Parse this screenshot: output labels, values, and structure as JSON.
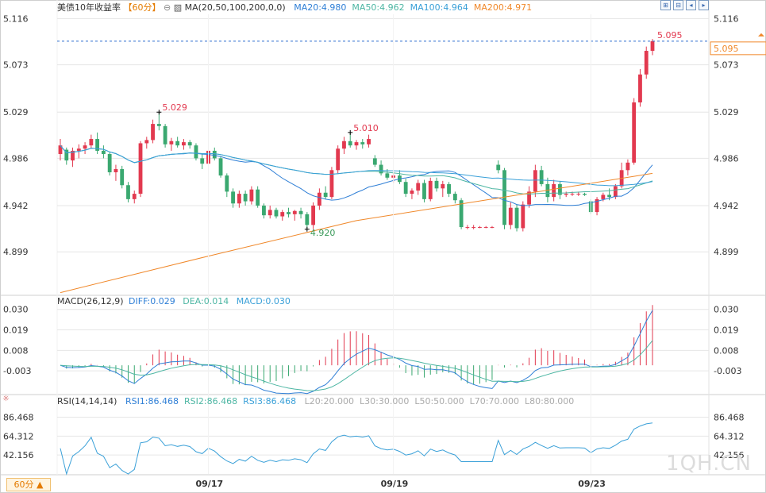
{
  "main": {
    "title": "美债10年收益率",
    "timeframe_badge": "【60分】",
    "ma_label": "MA(20,50,100,200,0,0)",
    "ma_values": [
      {
        "text": "MA20:4.980",
        "color": "#2f7fd6"
      },
      {
        "text": "MA50:4.962",
        "color": "#4db6a3"
      },
      {
        "text": "MA100:4.964",
        "color": "#3aa0d8"
      },
      {
        "text": "MA200:4.971",
        "color": "#f0882a"
      }
    ],
    "price_ticks": [
      "5.116",
      "5.073",
      "5.029",
      "4.986",
      "4.942",
      "4.899"
    ],
    "last_price": "5.095",
    "last_price_tag": "5.095",
    "annotations": [
      {
        "text": "5.029",
        "color": "#e2394f"
      },
      {
        "text": "5.010",
        "color": "#e2394f"
      },
      {
        "text": "4.920",
        "color": "#3a9a5a"
      }
    ]
  },
  "macd": {
    "label": "MACD(26,12,9)",
    "diff": "DIFF:0.029",
    "dea": "DEA:0.014",
    "macd": "MACD:0.030",
    "ticks": [
      "0.030",
      "0.019",
      "0.008",
      "-0.003"
    ]
  },
  "rsi": {
    "label": "RSI(14,14,14)",
    "values": [
      {
        "text": "RSI1:86.468",
        "color": "#2f7fd6"
      },
      {
        "text": "RSI2:86.468",
        "color": "#4db6a3"
      },
      {
        "text": "RSI3:86.468",
        "color": "#3aa0d8"
      }
    ],
    "levels": [
      "L20:20.000",
      "L30:30.000",
      "L50:50.000",
      "L70:70.000",
      "L80:80.000"
    ],
    "ticks": [
      "86.468",
      "64.312",
      "42.156"
    ]
  },
  "x_ticks": [
    "09/17",
    "09/19",
    "09/23"
  ],
  "timeframe_button": "60分 ▲",
  "watermark": "1QH.CN",
  "colors": {
    "up": "#e2394f",
    "down": "#3aa870",
    "ma20": "#2f7fd6",
    "ma50": "#4db6a3",
    "ma100": "#3aa0d8",
    "ma200": "#f0882a",
    "grid": "#e6e6e6"
  },
  "chart_data": {
    "type": "candlestick",
    "title": "美债10年收益率",
    "timeframe": "60分",
    "y_range": [
      4.86,
      5.12
    ],
    "x_labels": [
      "09/17",
      "09/19",
      "09/23"
    ],
    "candles": [
      [
        4.99,
        5.004,
        4.984,
        4.998
      ],
      [
        4.994,
        4.996,
        4.98,
        4.984
      ],
      [
        4.984,
        4.996,
        4.978,
        4.993
      ],
      [
        4.993,
        4.999,
        4.986,
        4.995
      ],
      [
        4.995,
        5.001,
        4.99,
        4.998
      ],
      [
        4.998,
        5.008,
        4.995,
        5.004
      ],
      [
        5.004,
        5.01,
        4.99,
        4.993
      ],
      [
        4.993,
        4.998,
        4.986,
        4.99
      ],
      [
        4.99,
        4.992,
        4.97,
        4.973
      ],
      [
        4.973,
        4.98,
        4.965,
        4.976
      ],
      [
        4.976,
        4.979,
        4.958,
        4.961
      ],
      [
        4.961,
        4.964,
        4.945,
        4.948
      ],
      [
        4.948,
        4.956,
        4.944,
        4.953
      ],
      [
        4.953,
        5.002,
        4.95,
        5.0
      ],
      [
        5.0,
        5.006,
        4.995,
        5.003
      ],
      [
        5.003,
        5.022,
        5.0,
        5.018
      ],
      [
        5.018,
        5.029,
        5.012,
        5.016
      ],
      [
        5.016,
        5.018,
        4.996,
        4.999
      ],
      [
        4.999,
        5.005,
        4.993,
        5.002
      ],
      [
        5.002,
        5.006,
        4.996,
        4.998
      ],
      [
        4.998,
        5.004,
        4.994,
        5.001
      ],
      [
        5.001,
        5.003,
        4.995,
        4.998
      ],
      [
        4.998,
        5.0,
        4.984,
        4.986
      ],
      [
        4.986,
        4.99,
        4.976,
        4.981
      ],
      [
        4.981,
        4.995,
        4.978,
        4.993
      ],
      [
        4.993,
        4.996,
        4.984,
        4.986
      ],
      [
        4.986,
        4.988,
        4.968,
        4.97
      ],
      [
        4.97,
        4.972,
        4.95,
        4.955
      ],
      [
        4.955,
        4.958,
        4.94,
        4.944
      ],
      [
        4.944,
        4.956,
        4.94,
        4.953
      ],
      [
        4.953,
        4.956,
        4.942,
        4.946
      ],
      [
        4.946,
        4.96,
        4.943,
        4.957
      ],
      [
        4.957,
        4.96,
        4.94,
        4.942
      ],
      [
        4.942,
        4.944,
        4.93,
        4.933
      ],
      [
        4.933,
        4.942,
        4.93,
        4.938
      ],
      [
        4.938,
        4.94,
        4.93,
        4.932
      ],
      [
        4.932,
        4.938,
        4.928,
        4.936
      ],
      [
        4.936,
        4.94,
        4.931,
        4.934
      ],
      [
        4.934,
        4.938,
        4.928,
        4.937
      ],
      [
        4.937,
        4.94,
        4.93,
        4.934
      ],
      [
        4.934,
        4.936,
        4.92,
        4.924
      ],
      [
        4.924,
        4.945,
        4.92,
        4.942
      ],
      [
        4.942,
        4.958,
        4.938,
        4.954
      ],
      [
        4.954,
        4.96,
        4.948,
        4.95
      ],
      [
        4.95,
        4.978,
        4.948,
        4.975
      ],
      [
        4.975,
        4.998,
        4.972,
        4.995
      ],
      [
        4.995,
        5.006,
        4.99,
        5.002
      ],
      [
        5.002,
        5.01,
        4.996,
        4.998
      ],
      [
        4.998,
        5.003,
        4.994,
        5.001
      ],
      [
        5.001,
        5.004,
        4.995,
        4.999
      ],
      [
        4.999,
        5.008,
        4.996,
        5.004
      ],
      [
        4.986,
        4.989,
        4.978,
        4.98
      ],
      [
        4.98,
        4.984,
        4.97,
        4.972
      ],
      [
        4.972,
        4.976,
        4.966,
        4.968
      ],
      [
        4.968,
        4.973,
        4.963,
        4.97
      ],
      [
        4.97,
        4.975,
        4.962,
        4.964
      ],
      [
        4.964,
        4.967,
        4.95,
        4.953
      ],
      [
        4.953,
        4.958,
        4.948,
        4.956
      ],
      [
        4.956,
        4.966,
        4.952,
        4.963
      ],
      [
        4.963,
        4.966,
        4.945,
        4.948
      ],
      [
        4.948,
        4.968,
        4.946,
        4.965
      ],
      [
        4.965,
        4.968,
        4.955,
        4.958
      ],
      [
        4.958,
        4.965,
        4.95,
        4.962
      ],
      [
        4.962,
        4.964,
        4.95,
        4.953
      ],
      [
        4.953,
        4.955,
        4.944,
        4.947
      ],
      [
        4.947,
        4.949,
        4.92,
        4.922
      ],
      [
        4.922,
        4.924,
        4.92,
        4.922
      ],
      [
        4.922,
        4.924,
        4.92,
        4.922
      ],
      [
        4.922,
        4.923,
        4.921,
        4.922
      ],
      [
        4.922,
        4.923,
        4.921,
        4.922
      ],
      [
        4.922,
        4.923,
        4.921,
        4.922
      ],
      [
        4.98,
        4.984,
        4.972,
        4.975
      ],
      [
        4.975,
        4.977,
        4.92,
        4.924
      ],
      [
        4.924,
        4.945,
        4.92,
        4.94
      ],
      [
        4.94,
        4.943,
        4.918,
        4.921
      ],
      [
        4.921,
        4.946,
        4.918,
        4.943
      ],
      [
        4.943,
        4.96,
        4.94,
        4.955
      ],
      [
        4.955,
        4.98,
        4.95,
        4.975
      ],
      [
        4.975,
        4.979,
        4.96,
        4.962
      ],
      [
        4.962,
        4.968,
        4.945,
        4.95
      ],
      [
        4.95,
        4.966,
        4.946,
        4.962
      ],
      [
        4.962,
        4.965,
        4.948,
        4.952
      ],
      [
        4.952,
        4.955,
        4.95,
        4.953
      ],
      [
        4.953,
        4.955,
        4.951,
        4.953
      ],
      [
        4.953,
        4.955,
        4.951,
        4.953
      ],
      [
        4.953,
        4.954,
        4.951,
        4.952
      ],
      [
        4.946,
        4.948,
        4.934,
        4.936
      ],
      [
        4.936,
        4.95,
        4.933,
        4.948
      ],
      [
        4.948,
        4.954,
        4.946,
        4.952
      ],
      [
        4.952,
        4.958,
        4.947,
        4.95
      ],
      [
        4.95,
        4.962,
        4.948,
        4.96
      ],
      [
        4.96,
        4.982,
        4.958,
        4.975
      ],
      [
        4.975,
        4.985,
        4.97,
        4.982
      ],
      [
        4.982,
        5.042,
        4.98,
        5.038
      ],
      [
        5.038,
        5.069,
        5.034,
        5.064
      ],
      [
        5.064,
        5.09,
        5.06,
        5.086
      ],
      [
        5.086,
        5.097,
        5.082,
        5.095
      ]
    ],
    "ma200": [
      4.861,
      4.895,
      4.928,
      4.95,
      4.972
    ],
    "macd_range": [
      -0.014,
      0.032
    ],
    "rsi_range": [
      20,
      100
    ]
  }
}
